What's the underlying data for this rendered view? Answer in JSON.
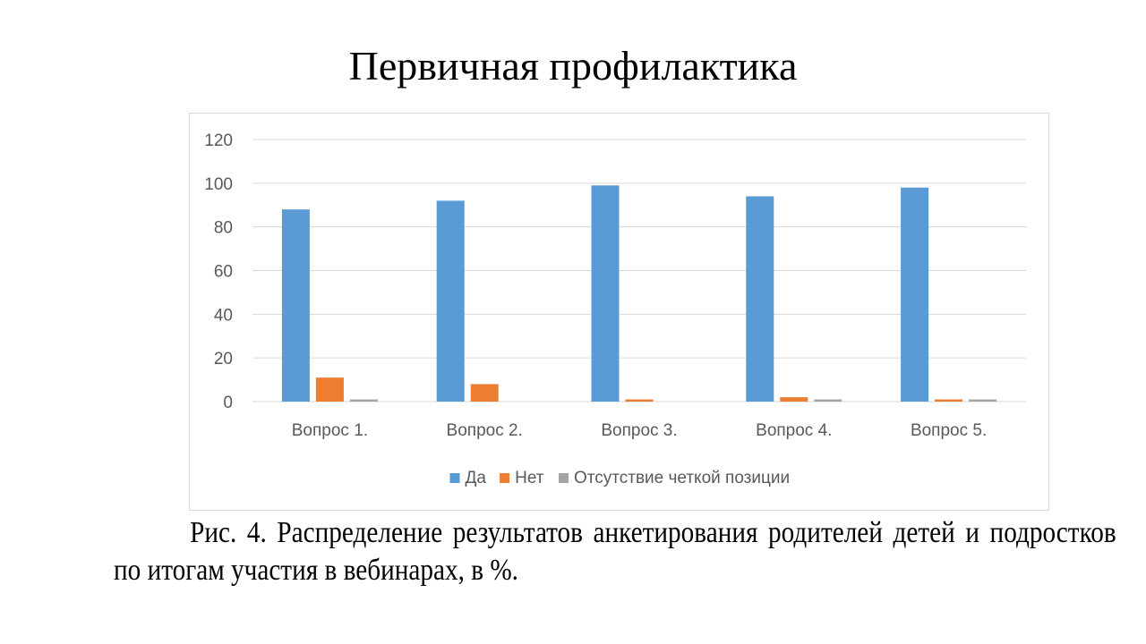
{
  "page": {
    "title": "Первичная профилактика",
    "caption": "Рис. 4. Распределение результатов анкетирования родителей детей и подростков по итогам участия в вебинарах, в %."
  },
  "colors": {
    "series": [
      "#5b9bd5",
      "#ed7d31",
      "#a5a5a5"
    ],
    "grid": "#d9d9d9",
    "axis_text": "#595959"
  },
  "chart_data": {
    "type": "bar",
    "categories": [
      "Вопрос 1.",
      "Вопрос 2.",
      "Вопрос 3.",
      "Вопрос 4.",
      "Вопрос 5."
    ],
    "series": [
      {
        "name": "Да",
        "values": [
          88,
          92,
          99,
          94,
          98
        ]
      },
      {
        "name": "Нет",
        "values": [
          11,
          8,
          1,
          2,
          1
        ]
      },
      {
        "name": "Отсутствие четкой позиции",
        "values": [
          1,
          0,
          0,
          1,
          1
        ]
      }
    ],
    "ylim": [
      0,
      120
    ],
    "yticks": [
      0,
      20,
      40,
      60,
      80,
      100,
      120
    ],
    "grid": true,
    "legend": "bottom"
  }
}
